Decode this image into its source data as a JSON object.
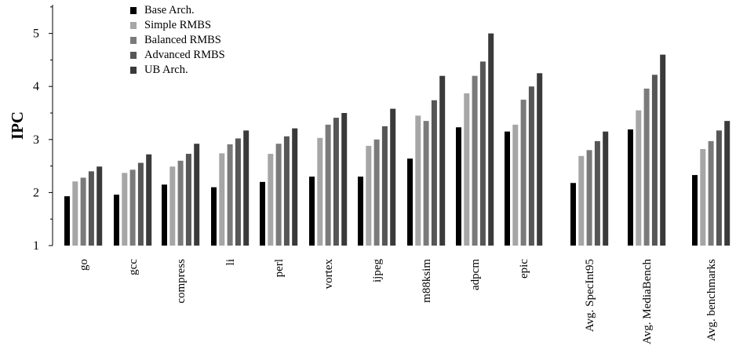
{
  "chart_data": {
    "type": "bar",
    "title": "",
    "xlabel": "",
    "ylabel": "IPC",
    "ylim": [
      1,
      5.5
    ],
    "yticks": [
      "1",
      "2",
      "3",
      "4",
      "5"
    ],
    "categories": [
      "go",
      "gcc",
      "compress",
      "li",
      "perl",
      "vortex",
      "ijpeg",
      "m88ksim",
      "adpcm",
      "epic",
      "Avg. SpecInt95",
      "Avg. MediaBench",
      "Avg. benchmarks"
    ],
    "series": [
      {
        "name": "Base Arch.",
        "color": "#000000",
        "values": [
          1.93,
          1.96,
          2.15,
          2.1,
          2.2,
          2.3,
          2.3,
          2.64,
          3.23,
          3.15,
          2.18,
          3.19,
          2.33
        ]
      },
      {
        "name": "Simple RMBS",
        "color": "#a6a6a6",
        "values": [
          2.21,
          2.37,
          2.49,
          2.74,
          2.73,
          3.03,
          2.88,
          3.45,
          3.87,
          3.28,
          2.69,
          3.55,
          2.82
        ]
      },
      {
        "name": "Balanced RMBS",
        "color": "#7a7a7a",
        "values": [
          2.28,
          2.43,
          2.6,
          2.91,
          2.92,
          3.28,
          3.0,
          3.35,
          4.2,
          3.75,
          2.8,
          3.96,
          2.97
        ]
      },
      {
        "name": "Advanced RMBS",
        "color": "#565656",
        "values": [
          2.4,
          2.56,
          2.73,
          3.02,
          3.06,
          3.41,
          3.25,
          3.74,
          4.47,
          4.0,
          2.97,
          4.22,
          3.17
        ]
      },
      {
        "name": "UB Arch.",
        "color": "#3a3a3a",
        "values": [
          2.49,
          2.72,
          2.92,
          3.17,
          3.21,
          3.5,
          3.58,
          4.2,
          5.0,
          4.25,
          3.15,
          4.6,
          3.35
        ]
      }
    ],
    "legend": "top-left",
    "grid": false
  }
}
